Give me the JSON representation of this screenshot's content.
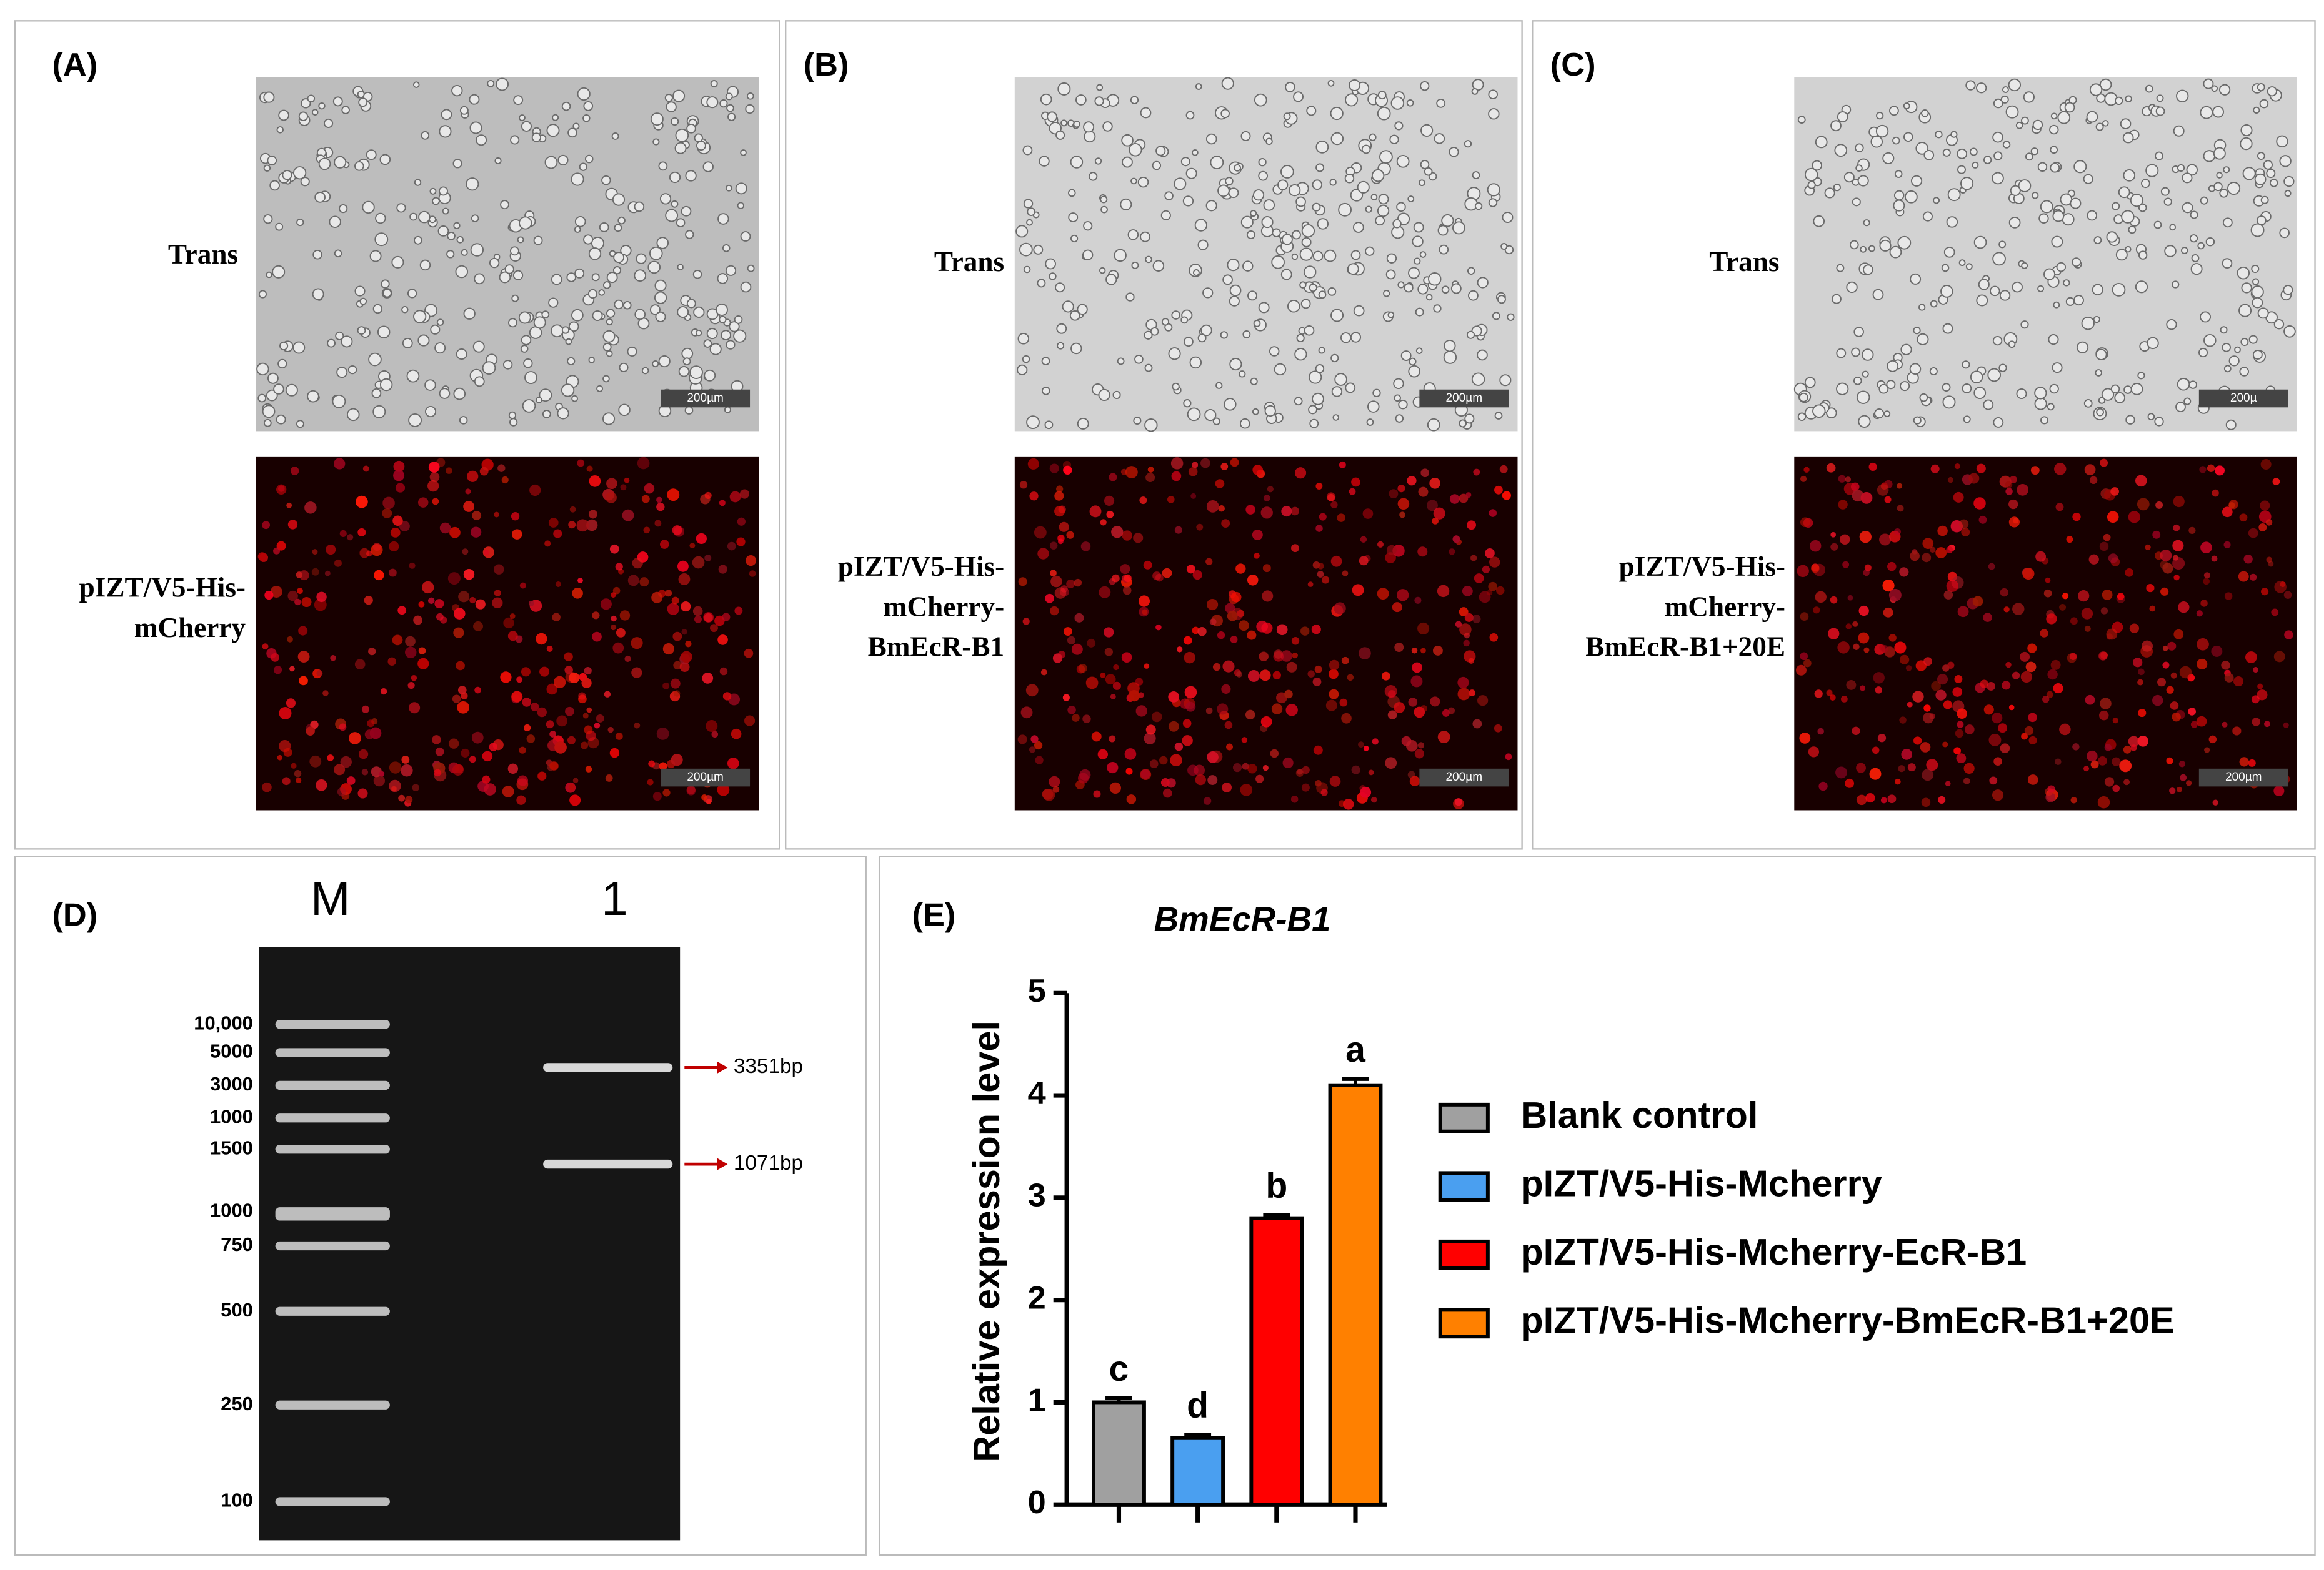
{
  "panels": [
    {
      "label": "(A)",
      "trans_label": "Trans",
      "fluorescence_label": [
        "pIZT/V5-His-",
        "mCherry"
      ],
      "scale_bars": [
        "200µm",
        "200µm"
      ]
    },
    {
      "label": "(B)",
      "trans_label": "Trans",
      "fluorescence_label": [
        "pIZT/V5-His-",
        "mCherry-",
        "BmEcR-B1"
      ],
      "scale_bars": [
        "200µm",
        "200µm"
      ]
    },
    {
      "label": "(C)",
      "trans_label": "Trans",
      "fluorescence_label": [
        "pIZT/V5-His-",
        "mCherry-",
        "BmEcR-B1+20E"
      ],
      "scale_bars": [
        "200µ",
        "200µm"
      ]
    }
  ],
  "gel": {
    "label": "(D)",
    "lanes": [
      "M",
      "1"
    ],
    "ladder": [
      "10,000",
      "5000",
      "3000",
      "1000",
      "1500",
      "1000",
      "750",
      "500",
      "250",
      "100"
    ],
    "bands": [
      "3351bp",
      "1071bp"
    ]
  },
  "chart_data": {
    "type": "bar",
    "panel_label": "(E)",
    "title": "BmEcR-B1",
    "y_label": "Relative expression level",
    "categories": [
      null
    ],
    "ylim": [
      0,
      5
    ],
    "yticks": [
      0,
      1,
      2,
      3,
      4,
      5
    ],
    "series": [
      {
        "name": "Blank control",
        "color": "#a0a0a0",
        "values": [
          1.0
        ],
        "errors": [
          0.04
        ],
        "significance": "c"
      },
      {
        "name": "pIZT/V5-His-Mcherry",
        "color": "#4a9ff0",
        "values": [
          0.65
        ],
        "errors": [
          0.03
        ],
        "significance": "d"
      },
      {
        "name": "pIZT/V5-His-Mcherry-EcR-B1",
        "color": "#ff0000",
        "values": [
          2.8
        ],
        "errors": [
          0.03
        ],
        "significance": "b"
      },
      {
        "name": "pIZT/V5-His-Mcherry-BmEcR-B1+20E",
        "color": "#ff8000",
        "values": [
          4.1
        ],
        "errors": [
          0.06
        ],
        "significance": "a"
      }
    ]
  }
}
